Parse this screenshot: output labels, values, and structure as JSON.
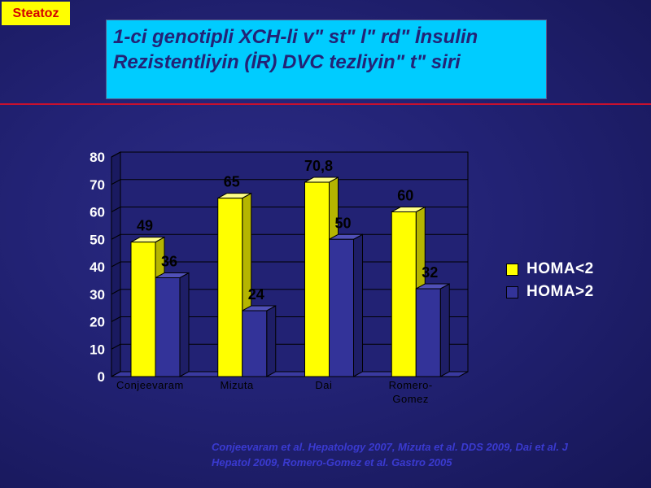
{
  "tag": {
    "label": "Steatoz"
  },
  "title": {
    "line1": "1-ci genotipli XCH-li v\" st\" l\" rd\"  İnsulin",
    "line2": "Rezistentliyin (İR) DVC tezliyin\"  t\" siri"
  },
  "source": {
    "line1": "Conjeevaram et al. Hepatology 2007, Mizuta et al. DDS 2009, Dai et al. J",
    "line2": "Hepatol 2009, Romero-Gomez et al. Gastro 2005"
  },
  "colors": {
    "series1": "#ffff00",
    "series2": "#333399",
    "title_bg": "#00ccff",
    "tag_bg": "#ffff00",
    "rule": "#c8102e"
  },
  "chart_data": {
    "type": "bar",
    "title": "",
    "xlabel": "",
    "ylabel": "",
    "categories": [
      "Conjeevaram",
      "Mizuta",
      "Dai",
      "Romero-Gomez"
    ],
    "category_labels": [
      [
        "Conjeevaram"
      ],
      [
        "Mizuta"
      ],
      [
        "Dai"
      ],
      [
        "Romero-",
        "Gomez"
      ]
    ],
    "series": [
      {
        "name": "HOMA<2",
        "values": [
          49,
          65,
          70.8,
          60
        ],
        "labels": [
          "49",
          "65",
          "70,8",
          "60"
        ]
      },
      {
        "name": "HOMA>2",
        "values": [
          36,
          24,
          50,
          32
        ],
        "labels": [
          "36",
          "24",
          "50",
          "32"
        ]
      }
    ],
    "ylim": [
      0,
      80
    ],
    "yticks": [
      0,
      10,
      20,
      30,
      40,
      50,
      60,
      70,
      80
    ],
    "grid": true,
    "legend": "right",
    "style": "3d"
  }
}
